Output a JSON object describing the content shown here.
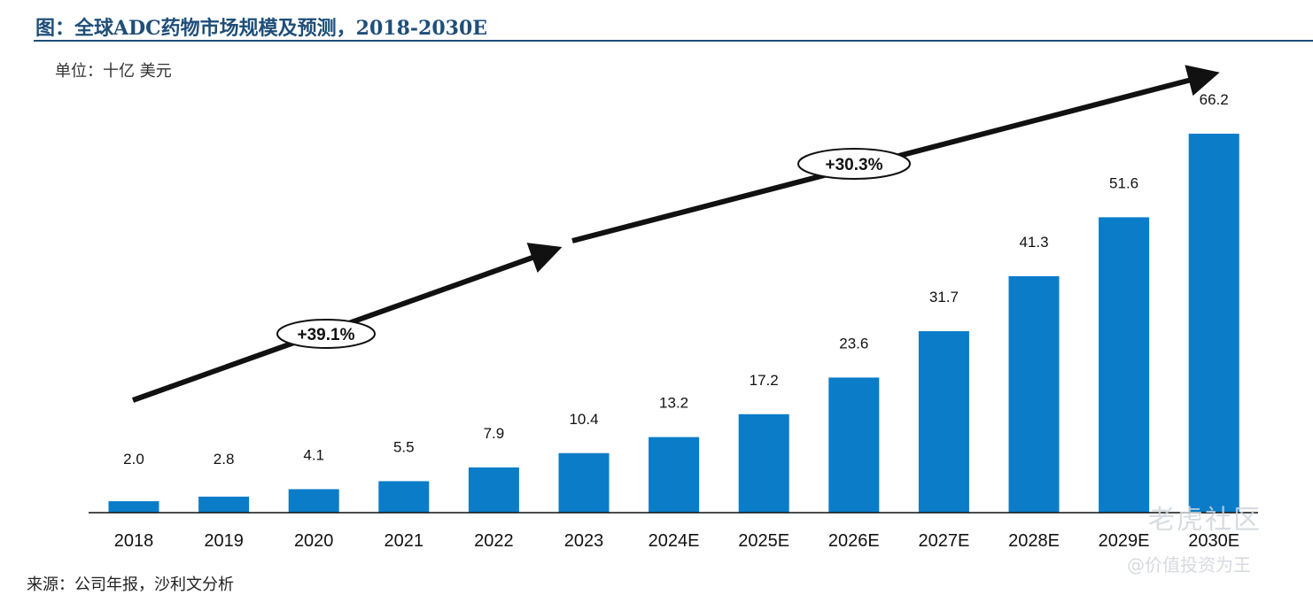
{
  "title": "图：全球ADC药物市场规模及预测，2018-2030E",
  "unit_label": "单位：十亿 美元",
  "source": "来源：公司年报，沙利文分析",
  "watermark": {
    "brand": "老虎社区",
    "user": "@价值投资为王"
  },
  "colors": {
    "bar": "#0a7cc8",
    "title": "#1f4e79",
    "arrow": "#111111"
  },
  "chart_data": {
    "type": "bar",
    "categories": [
      "2018",
      "2019",
      "2020",
      "2021",
      "2022",
      "2023",
      "2024E",
      "2025E",
      "2026E",
      "2027E",
      "2028E",
      "2029E",
      "2030E"
    ],
    "values": [
      2.0,
      2.8,
      4.1,
      5.5,
      7.9,
      10.4,
      13.2,
      17.2,
      23.6,
      31.7,
      41.3,
      51.6,
      66.2
    ],
    "value_labels": [
      "2.0",
      "2.8",
      "4.1",
      "5.5",
      "7.9",
      "10.4",
      "13.2",
      "17.2",
      "23.6",
      "31.7",
      "41.3",
      "51.6",
      "66.2"
    ],
    "ylim": [
      0,
      66.2
    ],
    "grid": false,
    "annotations": [
      {
        "text": "+39.1%",
        "from": "2018",
        "to": "2023"
      },
      {
        "text": "+30.3%",
        "from": "2023",
        "to": "2030E"
      }
    ]
  }
}
